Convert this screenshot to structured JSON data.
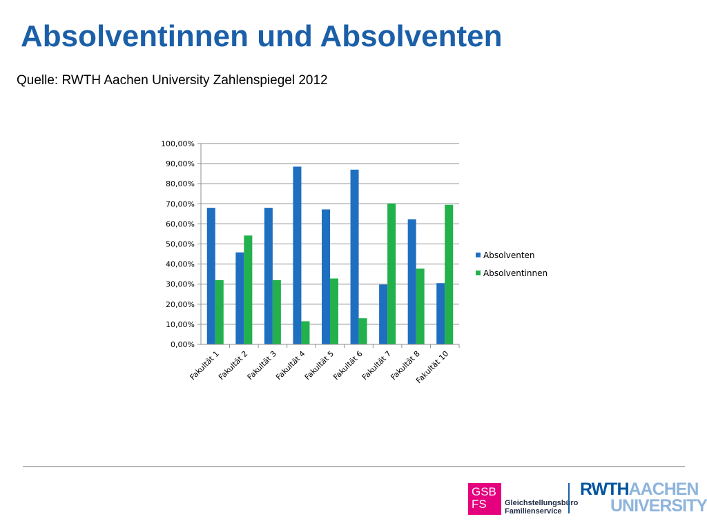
{
  "slide": {
    "title": "Absolventinnen und Absolventen",
    "subtitle": "Quelle: RWTH Aachen University Zahlenspiegel 2012"
  },
  "logos": {
    "gsb_line1": "GSB",
    "gsb_line2": "FS",
    "gsb_text_line1": "Gleichstellungsbüro",
    "gsb_text_line2": "Familienservice",
    "rwth_part1": "RWTH",
    "rwth_part2": "AACHEN",
    "rwth_line2": "UNIVERSITY"
  },
  "colors": {
    "title": "#1b5fa8",
    "series_absolventen": "#1f6fc1",
    "series_absolventinnen": "#22b14c",
    "gsb_pink": "#e5007d"
  },
  "chart_data": {
    "type": "bar",
    "categories": [
      "Fakultät 1",
      "Fakultät 2",
      "Fakultät 3",
      "Fakultät 4",
      "Fakultät 5",
      "Fakultät 6",
      "Fakultät 7",
      "Fakultät 8",
      "Fakultät 10"
    ],
    "series": [
      {
        "name": "Absolventen",
        "values": [
          68.0,
          45.8,
          68.0,
          88.5,
          67.2,
          87.0,
          29.8,
          62.3,
          30.5
        ]
      },
      {
        "name": "Absolventinnen",
        "values": [
          32.0,
          54.2,
          32.0,
          11.5,
          32.8,
          13.0,
          70.2,
          37.7,
          69.5
        ]
      }
    ],
    "ylim": [
      0,
      100
    ],
    "yticks": [
      "0,00%",
      "10,00%",
      "20,00%",
      "30,00%",
      "40,00%",
      "50,00%",
      "60,00%",
      "70,00%",
      "80,00%",
      "90,00%",
      "100,00%"
    ],
    "grid": true,
    "legend": "right"
  }
}
